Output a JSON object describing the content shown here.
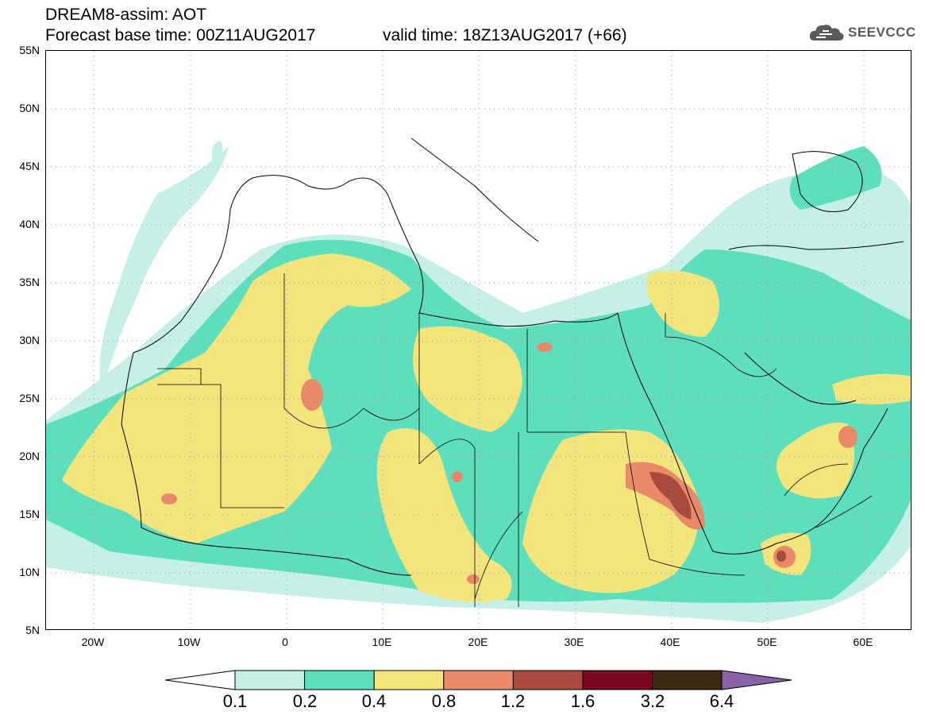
{
  "header": {
    "line1": "DREAM8-assim: AOT",
    "line2": "Forecast base time: 00Z11AUG2017",
    "valid": "valid time: 18Z13AUG2017 (+66)"
  },
  "logo": {
    "text": "SEEVCCC",
    "icon": "cloud-icon",
    "color": "#5a5a5a"
  },
  "map": {
    "variable": "AOT",
    "lon_range": [
      -25,
      65
    ],
    "lat_range": [
      5,
      55
    ],
    "lat_labels": [
      "55N",
      "50N",
      "45N",
      "40N",
      "35N",
      "30N",
      "25N",
      "20N",
      "15N",
      "10N",
      "5N"
    ],
    "lon_labels": [
      "20W",
      "10W",
      "0",
      "10E",
      "20E",
      "30E",
      "40E",
      "50E",
      "60E"
    ]
  },
  "colorbar": {
    "levels": [
      "0.1",
      "0.2",
      "0.4",
      "0.8",
      "1.2",
      "1.6",
      "3.2",
      "6.4"
    ],
    "colors": [
      "#ffffff",
      "#c6efe8",
      "#5ddfbd",
      "#f3e47b",
      "#e8896a",
      "#a84a3c",
      "#7a0a22",
      "#3d2a14",
      "#8a62a8"
    ]
  }
}
